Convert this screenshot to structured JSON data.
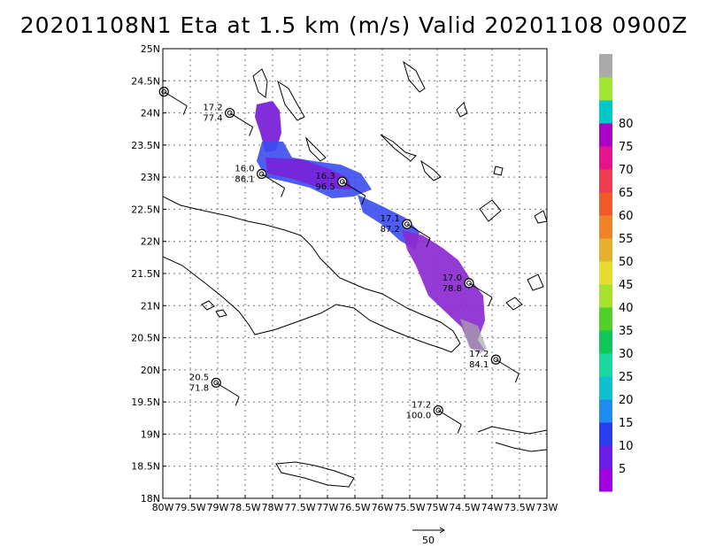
{
  "title": "20201108N1 Eta at 1.5 km (m/s) Valid 20201108  0900Z",
  "chart_data": {
    "type": "map",
    "xlabel": "",
    "ylabel": "",
    "xlim": [
      -80,
      -73
    ],
    "ylim": [
      18,
      25
    ],
    "x_ticks": [
      {
        "v": -80,
        "label": "80W"
      },
      {
        "v": -79.5,
        "label": "79.5W"
      },
      {
        "v": -79,
        "label": "79W"
      },
      {
        "v": -78.5,
        "label": "78.5W"
      },
      {
        "v": -78,
        "label": "78W"
      },
      {
        "v": -77.5,
        "label": "77.5W"
      },
      {
        "v": -77,
        "label": "77W"
      },
      {
        "v": -76.5,
        "label": "76.5W"
      },
      {
        "v": -76,
        "label": "76W"
      },
      {
        "v": -75.5,
        "label": "75.5W"
      },
      {
        "v": -75,
        "label": "75W"
      },
      {
        "v": -74.5,
        "label": "74.5W"
      },
      {
        "v": -74,
        "label": "74W"
      },
      {
        "v": -73.5,
        "label": "73.5W"
      },
      {
        "v": -73,
        "label": "73W"
      }
    ],
    "y_ticks": [
      {
        "v": 18,
        "label": "18N"
      },
      {
        "v": 18.5,
        "label": "18.5N"
      },
      {
        "v": 19,
        "label": "19N"
      },
      {
        "v": 19.5,
        "label": "19.5N"
      },
      {
        "v": 20,
        "label": "20N"
      },
      {
        "v": 20.5,
        "label": "20.5N"
      },
      {
        "v": 21,
        "label": "21N"
      },
      {
        "v": 21.5,
        "label": "21.5N"
      },
      {
        "v": 22,
        "label": "22N"
      },
      {
        "v": 22.5,
        "label": "22.5N"
      },
      {
        "v": 23,
        "label": "23N"
      },
      {
        "v": 23.5,
        "label": "23.5N"
      },
      {
        "v": 24,
        "label": "24N"
      },
      {
        "v": 24.5,
        "label": "24.5N"
      },
      {
        "v": 25,
        "label": "25N"
      }
    ],
    "grid": true,
    "colorbar": {
      "labels": [
        "5",
        "10",
        "15",
        "20",
        "25",
        "30",
        "35",
        "40",
        "45",
        "50",
        "55",
        "60",
        "65",
        "70",
        "75",
        "80"
      ],
      "colors": [
        "#a000e0",
        "#6a1ee8",
        "#2a3cf0",
        "#1e8cf0",
        "#10c0d0",
        "#18d8a0",
        "#10c858",
        "#50d028",
        "#a8e030",
        "#e6dc32",
        "#e6af2d",
        "#f08228",
        "#f05a28",
        "#f03c50",
        "#e6148c",
        "#aa00c8",
        "#00c8c8",
        "#a0e632",
        "#aaaaaa"
      ]
    },
    "stations": [
      {
        "lon": -79.98,
        "lat": 24.33,
        "spd": "",
        "dir": ""
      },
      {
        "lon": -78.78,
        "lat": 24.0,
        "spd": "17.2",
        "dir": "77.4"
      },
      {
        "lon": -78.2,
        "lat": 23.05,
        "spd": "16.0",
        "dir": "86.1"
      },
      {
        "lon": -76.73,
        "lat": 22.93,
        "spd": "16.3",
        "dir": "96.5"
      },
      {
        "lon": -75.55,
        "lat": 22.27,
        "spd": "17.1",
        "dir": "87.2"
      },
      {
        "lon": -74.42,
        "lat": 21.35,
        "spd": "17.0",
        "dir": "78.8"
      },
      {
        "lon": -73.93,
        "lat": 20.16,
        "spd": "17.2",
        "dir": "84.1"
      },
      {
        "lon": -79.03,
        "lat": 19.8,
        "spd": "20.5",
        "dir": "71.8"
      },
      {
        "lon": -74.98,
        "lat": 19.37,
        "spd": "17.2",
        "dir": "100.0"
      }
    ],
    "reference_vector": {
      "value": "50"
    }
  }
}
